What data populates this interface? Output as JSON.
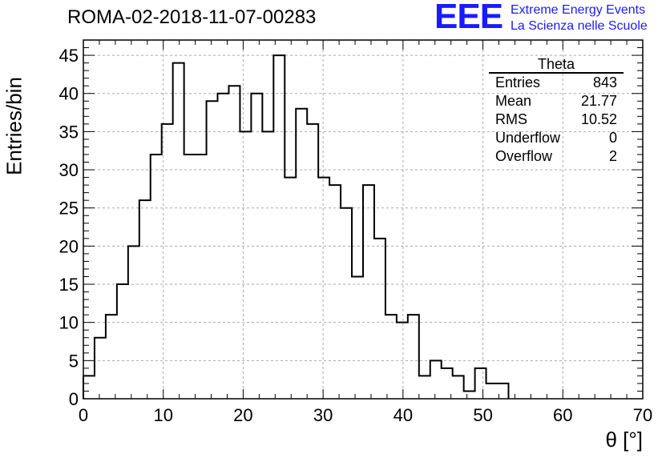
{
  "title": "ROMA-02-2018-11-07-00283",
  "logo": {
    "letters": "EEE",
    "line1": "Extreme Energy Events",
    "line2": "La Scienza nelle Scuole",
    "color": "#1a1aff"
  },
  "stats": {
    "title": "Theta",
    "rows": [
      {
        "label": "Entries",
        "value": "843"
      },
      {
        "label": "Mean",
        "value": "21.77"
      },
      {
        "label": "RMS",
        "value": "10.52"
      },
      {
        "label": "Underflow",
        "value": "0"
      },
      {
        "label": "Overflow",
        "value": "2"
      }
    ]
  },
  "chart_data": {
    "type": "bar",
    "subtype": "step-histogram",
    "title": "ROMA-02-2018-11-07-00283",
    "xlabel": "θ [°]",
    "ylabel": "Entries/bin",
    "xlim": [
      0,
      70
    ],
    "ylim": [
      0,
      47
    ],
    "bin_width": 1.4,
    "bin_edges_start": 0,
    "values": [
      3,
      8,
      11,
      15,
      20,
      26,
      32,
      36,
      44,
      32,
      32,
      39,
      40,
      41,
      35,
      40,
      35,
      45,
      29,
      38,
      36,
      29,
      28,
      25,
      16,
      28,
      21,
      11,
      10,
      11,
      3,
      5,
      4,
      3,
      1,
      4,
      2,
      2
    ],
    "xticks": [
      0,
      10,
      20,
      30,
      40,
      50,
      60,
      70
    ],
    "yticks": [
      0,
      5,
      10,
      15,
      20,
      25,
      30,
      35,
      40,
      45
    ],
    "grid": true,
    "line_color": "#000000"
  }
}
